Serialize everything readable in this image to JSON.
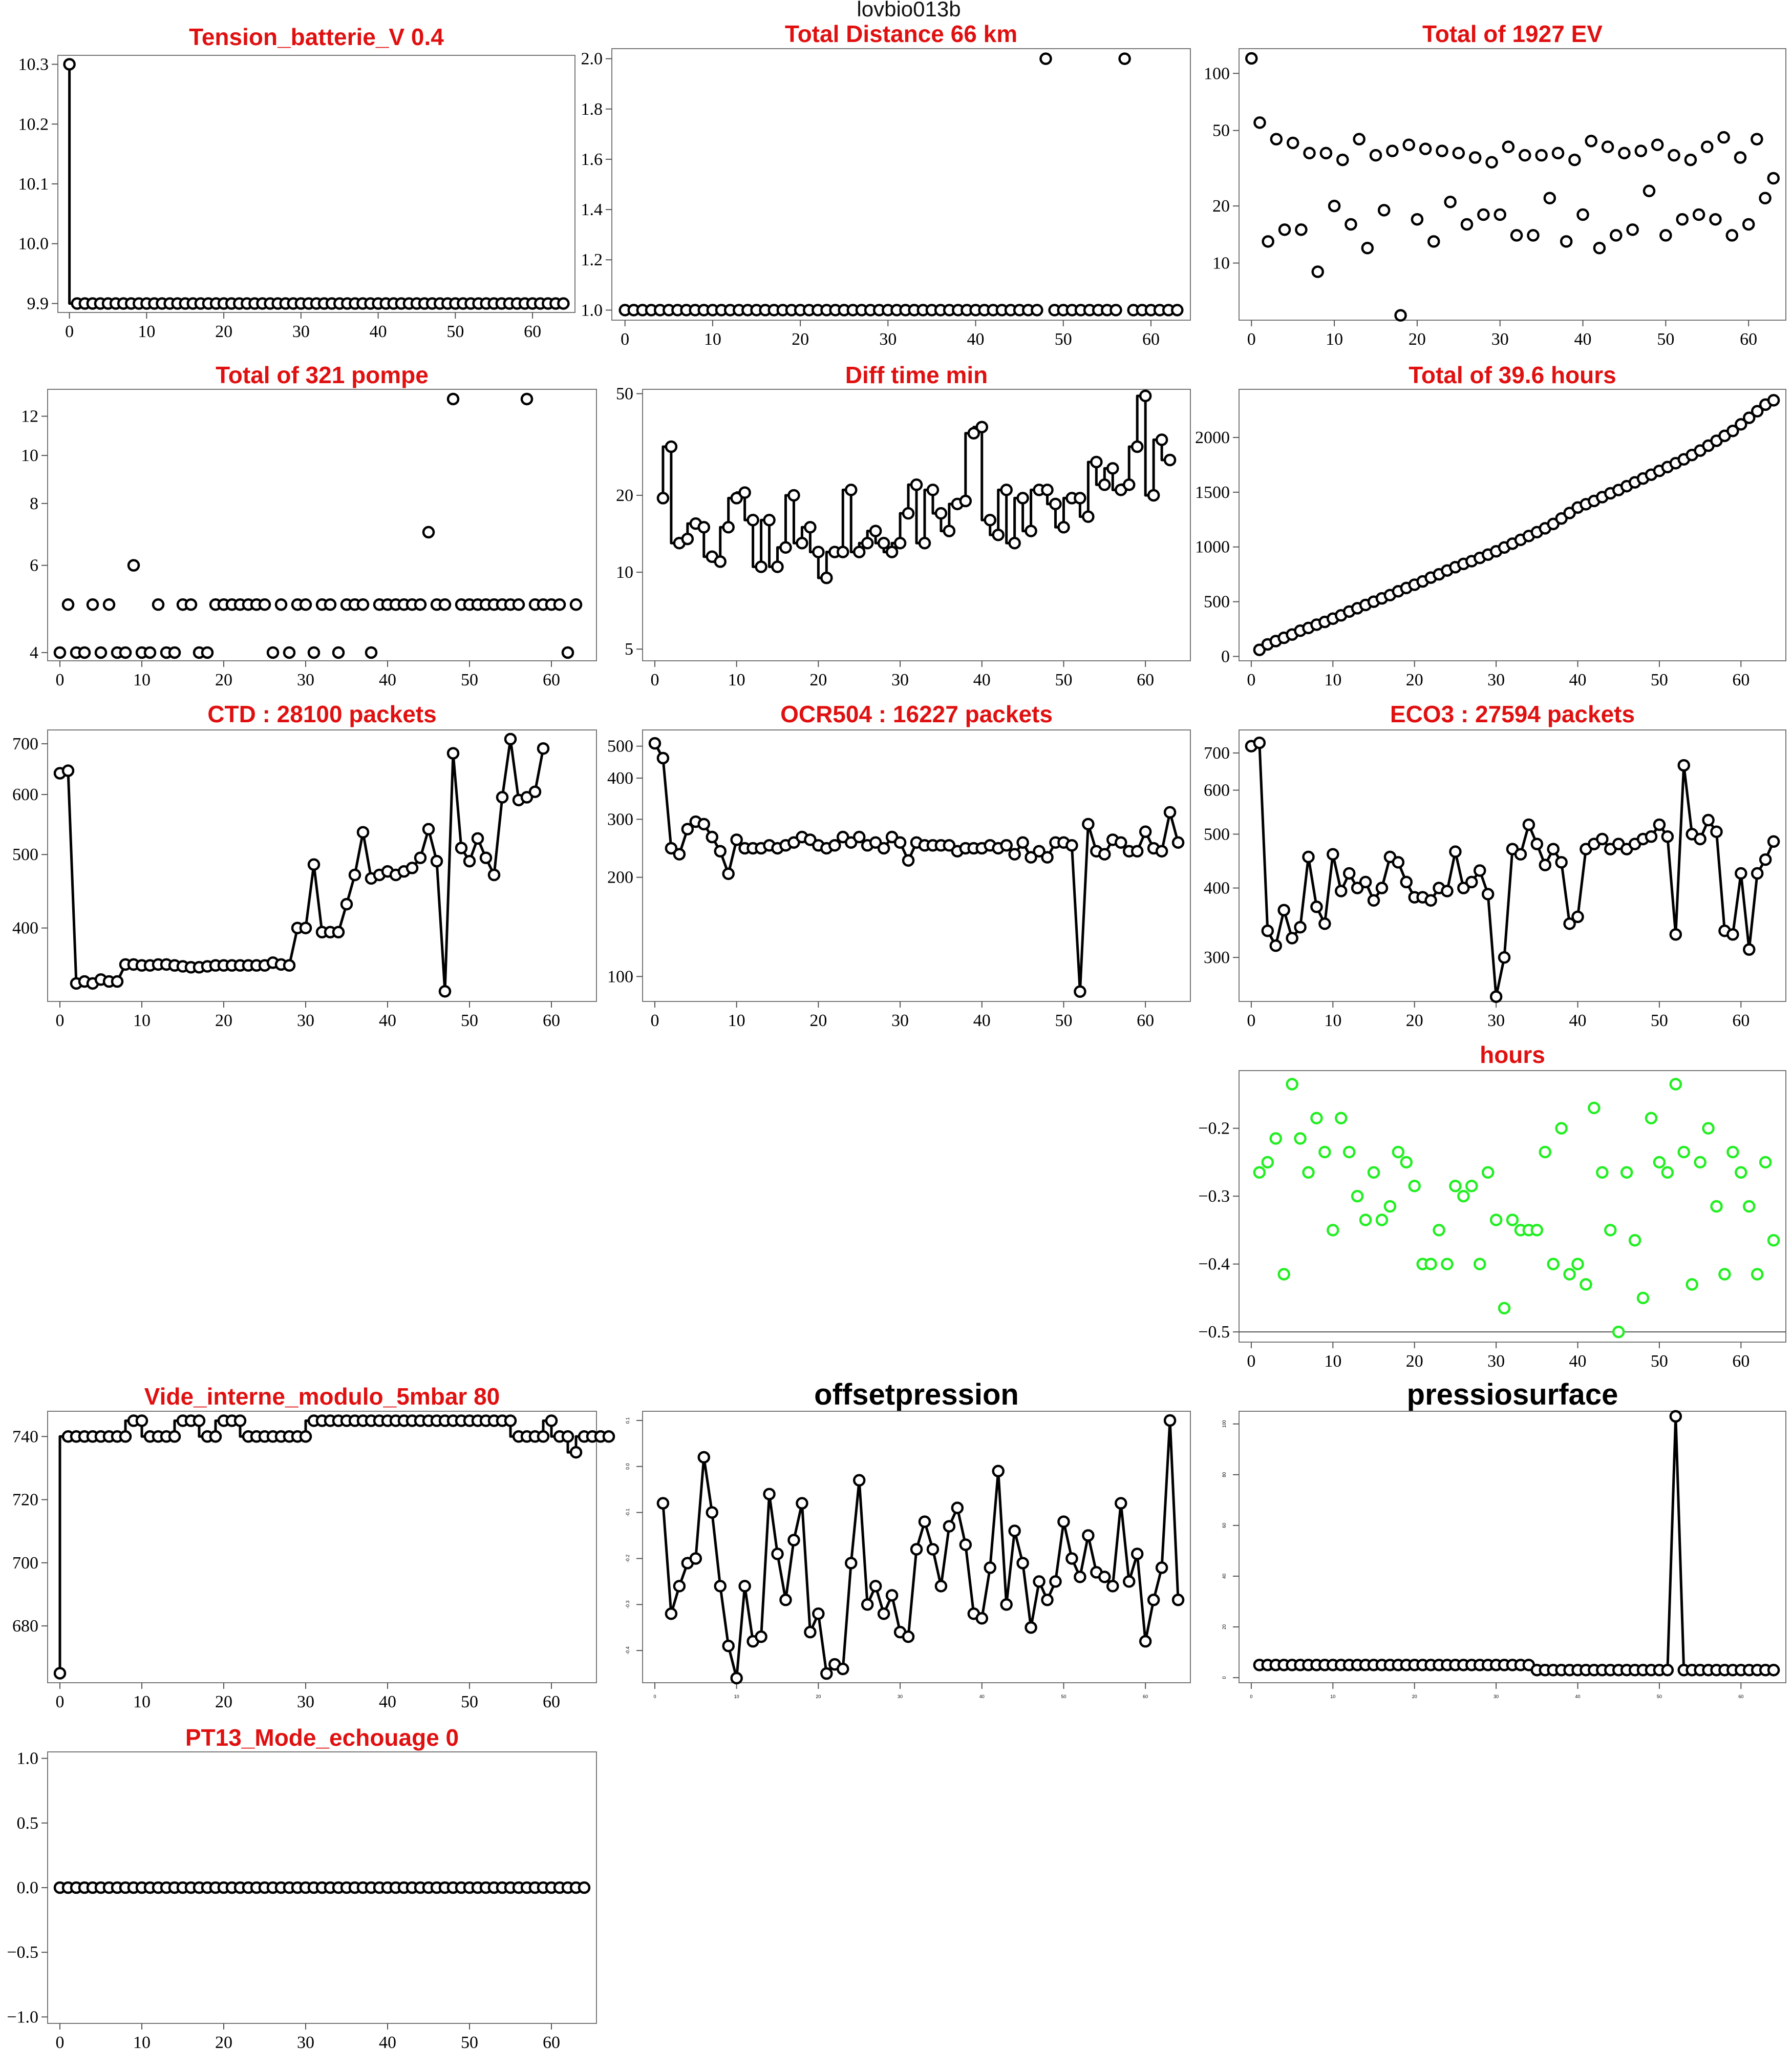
{
  "figure": {
    "title": "lovbio013b"
  },
  "chart_data": [
    {
      "id": "tension",
      "type": "line",
      "title": "Tension_batterie_V 0.4",
      "title_color": "#e01010",
      "style": "step",
      "x_start": 0,
      "ylim": [
        9.885,
        10.315
      ],
      "y_ticks": [
        9.9,
        10.0,
        10.1,
        10.2,
        10.3
      ],
      "y_tick_labels": [
        "9.9",
        "10.0",
        "10.1",
        "10.2",
        "10.3"
      ],
      "xlim": [
        -1.5,
        65.5
      ],
      "x_ticks": [
        0,
        10,
        20,
        30,
        40,
        50,
        60
      ],
      "values": [
        10.3,
        9.9,
        9.9,
        9.9,
        9.9,
        9.9,
        9.9,
        9.9,
        9.9,
        9.9,
        9.9,
        9.9,
        9.9,
        9.9,
        9.9,
        9.9,
        9.9,
        9.9,
        9.9,
        9.9,
        9.9,
        9.9,
        9.9,
        9.9,
        9.9,
        9.9,
        9.9,
        9.9,
        9.9,
        9.9,
        9.9,
        9.9,
        9.9,
        9.9,
        9.9,
        9.9,
        9.9,
        9.9,
        9.9,
        9.9,
        9.9,
        9.9,
        9.9,
        9.9,
        9.9,
        9.9,
        9.9,
        9.9,
        9.9,
        9.9,
        9.9,
        9.9,
        9.9,
        9.9,
        9.9,
        9.9,
        9.9,
        9.9,
        9.9,
        9.9,
        9.9,
        9.9,
        9.9,
        9.9,
        9.9
      ]
    },
    {
      "id": "distance",
      "type": "scatter",
      "title": "Total Distance  66  km",
      "title_color": "#e01010",
      "x_start": 0,
      "ylim": [
        0.96,
        2.04
      ],
      "y_ticks": [
        1.0,
        1.2,
        1.4,
        1.6,
        1.8,
        2.0
      ],
      "y_tick_labels": [
        "1.0",
        "1.2",
        "1.4",
        "1.6",
        "1.8",
        "2.0"
      ],
      "xlim": [
        -1.5,
        64.5
      ],
      "x_ticks": [
        0,
        10,
        20,
        30,
        40,
        50,
        60
      ],
      "values": [
        1,
        1,
        1,
        1,
        1,
        1,
        1,
        1,
        1,
        1,
        1,
        1,
        1,
        1,
        1,
        1,
        1,
        1,
        1,
        1,
        1,
        1,
        1,
        1,
        1,
        1,
        1,
        1,
        1,
        1,
        1,
        1,
        1,
        1,
        1,
        1,
        1,
        1,
        1,
        1,
        1,
        1,
        1,
        1,
        1,
        1,
        1,
        1,
        2,
        1,
        1,
        1,
        1,
        1,
        1,
        1,
        1,
        2,
        1,
        1,
        1,
        1,
        1,
        1
      ]
    },
    {
      "id": "ev",
      "type": "scatter",
      "title": "Total of  1927  EV",
      "title_color": "#e01010",
      "log_y": true,
      "x_start": 0,
      "ylim": [
        5,
        135
      ],
      "y_ticks": [
        10,
        20,
        50,
        100
      ],
      "y_tick_labels": [
        "10",
        "20",
        "50",
        "100"
      ],
      "xlim": [
        -1.5,
        64.5
      ],
      "x_ticks": [
        0,
        10,
        20,
        30,
        40,
        50,
        60
      ],
      "values": [
        120,
        55,
        13,
        45,
        15,
        43,
        15,
        38,
        9,
        38,
        20,
        35,
        16,
        45,
        12,
        37,
        19,
        39,
        5.3,
        42,
        17,
        40,
        13,
        39,
        21,
        38,
        16,
        36,
        18,
        34,
        18,
        41,
        14,
        37,
        14,
        37,
        22,
        38,
        13,
        35,
        18,
        44,
        12,
        41,
        14,
        38,
        15,
        39,
        24,
        42,
        14,
        37,
        17,
        35,
        18,
        41,
        17,
        46,
        14,
        36,
        16,
        45,
        22,
        28
      ]
    },
    {
      "id": "pompe",
      "type": "scatter",
      "title": "Total of  321  pompe",
      "title_color": "#e01010",
      "log_y": true,
      "x_start": 0,
      "ylim": [
        3.85,
        13.6
      ],
      "y_ticks": [
        4,
        6,
        8,
        10,
        12
      ],
      "y_tick_labels": [
        "4",
        "6",
        "8",
        "10",
        "12"
      ],
      "xlim": [
        -1.5,
        65.5
      ],
      "x_ticks": [
        0,
        10,
        20,
        30,
        40,
        50,
        60
      ],
      "values": [
        4,
        5,
        4,
        4,
        5,
        4,
        5,
        4,
        4,
        6,
        4,
        4,
        5,
        4,
        4,
        5,
        5,
        4,
        4,
        5,
        5,
        5,
        5,
        5,
        5,
        5,
        4,
        5,
        4,
        5,
        5,
        4,
        5,
        5,
        4,
        5,
        5,
        5,
        4,
        5,
        5,
        5,
        5,
        5,
        5,
        7,
        5,
        5,
        13,
        5,
        5,
        5,
        5,
        5,
        5,
        5,
        5,
        13,
        5,
        5,
        5,
        5,
        4,
        5
      ]
    },
    {
      "id": "difftime",
      "type": "line",
      "title": "Diff time min",
      "title_color": "#e01010",
      "style": "step",
      "log_y": true,
      "x_start": 1,
      "ylim": [
        4.5,
        52
      ],
      "y_ticks": [
        5,
        10,
        20,
        50
      ],
      "y_tick_labels": [
        "5",
        "10",
        "20",
        "50"
      ],
      "xlim": [
        -1.5,
        65.5
      ],
      "x_ticks": [
        0,
        10,
        20,
        30,
        40,
        50,
        60
      ],
      "values": [
        19.5,
        31,
        13,
        13.5,
        15.5,
        15,
        11.5,
        11,
        15,
        19.5,
        20.5,
        16,
        10.5,
        16,
        10.5,
        12.5,
        20,
        13,
        15,
        12,
        9.5,
        12,
        12,
        21,
        12,
        13,
        14.5,
        13,
        12,
        13,
        17,
        22,
        13,
        21,
        17,
        14.5,
        18.5,
        19,
        35,
        37,
        16,
        14,
        21,
        13,
        19.5,
        14.5,
        21,
        21,
        18.5,
        15,
        19.5,
        19.5,
        16.5,
        27,
        22,
        25.5,
        21,
        22,
        31,
        49,
        20,
        33,
        27.5
      ]
    },
    {
      "id": "hours_total",
      "type": "line",
      "title": "Total of  39.6  hours",
      "title_color": "#e01010",
      "x_start": 1,
      "ylim": [
        -40,
        2440
      ],
      "y_ticks": [
        0,
        500,
        1000,
        1500,
        2000
      ],
      "y_tick_labels": [
        "0",
        "500",
        "1000",
        "1500",
        "2000"
      ],
      "xlim": [
        -1.5,
        65.5
      ],
      "x_ticks": [
        0,
        10,
        20,
        30,
        40,
        50,
        60
      ],
      "values": [
        60,
        110,
        140,
        170,
        200,
        235,
        260,
        290,
        315,
        345,
        375,
        410,
        440,
        470,
        500,
        530,
        560,
        595,
        625,
        655,
        685,
        720,
        750,
        785,
        815,
        845,
        870,
        900,
        930,
        960,
        995,
        1030,
        1065,
        1100,
        1135,
        1170,
        1210,
        1260,
        1310,
        1360,
        1390,
        1420,
        1455,
        1490,
        1520,
        1555,
        1590,
        1625,
        1660,
        1695,
        1730,
        1765,
        1800,
        1840,
        1880,
        1925,
        1970,
        2015,
        2060,
        2120,
        2180,
        2240,
        2300,
        2340
      ]
    },
    {
      "id": "ctd",
      "type": "line",
      "title": "CTD  : 28100  packets",
      "title_color": "#e01010",
      "log_y": true,
      "x_start": 0,
      "ylim": [
        320,
        730
      ],
      "y_ticks": [
        400,
        500,
        600,
        700
      ],
      "y_tick_labels": [
        "400",
        "500",
        "600",
        "700"
      ],
      "xlim": [
        -1.5,
        65.5
      ],
      "x_ticks": [
        0,
        10,
        20,
        30,
        40,
        50,
        60
      ],
      "values": [
        640,
        645,
        338,
        340,
        338,
        342,
        340,
        340,
        358,
        358,
        357,
        357,
        358,
        358,
        357,
        356,
        355,
        355,
        356,
        357,
        357,
        357,
        357,
        357,
        357,
        357,
        360,
        358,
        357,
        400,
        400,
        485,
        395,
        395,
        395,
        430,
        470,
        535,
        465,
        470,
        475,
        470,
        475,
        480,
        495,
        540,
        490,
        330,
        680,
        510,
        490,
        525,
        495,
        470,
        595,
        710,
        590,
        595,
        605,
        690
      ]
    },
    {
      "id": "ocr",
      "type": "line",
      "title": "OCR504  : 16227  packets",
      "title_color": "#e01010",
      "log_y": true,
      "x_start": 0,
      "ylim": [
        84,
        560
      ],
      "y_ticks": [
        100,
        200,
        300,
        400,
        500
      ],
      "y_tick_labels": [
        "100",
        "200",
        "300",
        "400",
        "500"
      ],
      "xlim": [
        -1.5,
        65.5
      ],
      "x_ticks": [
        0,
        10,
        20,
        30,
        40,
        50,
        60
      ],
      "values": [
        510,
        460,
        245,
        235,
        280,
        295,
        290,
        265,
        240,
        205,
        260,
        245,
        245,
        245,
        250,
        245,
        250,
        255,
        265,
        260,
        250,
        245,
        250,
        265,
        255,
        265,
        250,
        255,
        245,
        265,
        255,
        225,
        255,
        250,
        250,
        250,
        250,
        240,
        245,
        245,
        245,
        250,
        245,
        250,
        235,
        255,
        230,
        240,
        230,
        255,
        255,
        250,
        90,
        290,
        240,
        235,
        260,
        255,
        240,
        240,
        275,
        245,
        240,
        315,
        255
      ]
    },
    {
      "id": "eco",
      "type": "line",
      "title": "ECO3  : 27594  packets",
      "title_color": "#e01010",
      "log_y": true,
      "x_start": 0,
      "ylim": [
        250,
        770
      ],
      "y_ticks": [
        300,
        400,
        500,
        600,
        700
      ],
      "y_tick_labels": [
        "300",
        "400",
        "500",
        "600",
        "700"
      ],
      "xlim": [
        -1.5,
        65.5
      ],
      "x_ticks": [
        0,
        10,
        20,
        30,
        40,
        50,
        60
      ],
      "values": [
        720,
        730,
        335,
        315,
        365,
        325,
        340,
        455,
        370,
        345,
        460,
        395,
        425,
        400,
        410,
        380,
        400,
        455,
        445,
        410,
        385,
        385,
        380,
        400,
        395,
        465,
        400,
        410,
        430,
        390,
        255,
        300,
        470,
        460,
        520,
        480,
        440,
        470,
        445,
        345,
        355,
        470,
        480,
        490,
        470,
        480,
        470,
        480,
        490,
        495,
        520,
        495,
        330,
        665,
        500,
        490,
        530,
        505,
        335,
        330,
        425,
        310,
        425,
        450,
        485
      ]
    },
    {
      "id": "hours",
      "type": "scatter",
      "title": "hours",
      "title_color": "#e01010",
      "point_color": "#22ee22",
      "hline": -0.5,
      "x_start": 0,
      "ylim": [
        -0.515,
        -0.115
      ],
      "y_ticks": [
        -0.5,
        -0.4,
        -0.3,
        -0.2
      ],
      "y_tick_labels": [
        "−0.5",
        "−0.4",
        "−0.3",
        "−0.2"
      ],
      "xlim": [
        -1.5,
        65.5
      ],
      "x_ticks": [
        0,
        10,
        20,
        30,
        40,
        50,
        60
      ],
      "values": [
        null,
        -0.265,
        -0.25,
        -0.215,
        -0.415,
        -0.135,
        -0.215,
        -0.265,
        -0.185,
        -0.235,
        -0.35,
        -0.185,
        -0.235,
        -0.3,
        -0.335,
        -0.265,
        -0.335,
        -0.315,
        -0.235,
        -0.25,
        -0.285,
        -0.4,
        -0.4,
        -0.35,
        -0.4,
        -0.285,
        -0.3,
        -0.285,
        -0.4,
        -0.265,
        -0.335,
        -0.465,
        -0.335,
        -0.35,
        -0.35,
        -0.35,
        -0.235,
        -0.4,
        -0.2,
        -0.415,
        -0.4,
        -0.43,
        -0.17,
        -0.265,
        -0.35,
        -0.5,
        -0.265,
        -0.365,
        -0.45,
        -0.185,
        -0.25,
        -0.265,
        -0.135,
        -0.235,
        -0.43,
        -0.25,
        -0.2,
        -0.315,
        -0.415,
        -0.235,
        -0.265,
        -0.315,
        -0.415,
        -0.25,
        -0.365
      ]
    },
    {
      "id": "vide",
      "type": "line",
      "title": "Vide_interne_modulo_5mbar 80",
      "title_color": "#e01010",
      "style": "step",
      "x_start": 0,
      "ylim": [
        662,
        748
      ],
      "y_ticks": [
        680,
        700,
        720,
        740
      ],
      "y_tick_labels": [
        "680",
        "700",
        "720",
        "740"
      ],
      "xlim": [
        -1.5,
        65.5
      ],
      "x_ticks": [
        0,
        10,
        20,
        30,
        40,
        50,
        60
      ],
      "values": [
        665,
        740,
        740,
        740,
        740,
        740,
        740,
        740,
        740,
        745,
        745,
        740,
        740,
        740,
        740,
        745,
        745,
        745,
        740,
        740,
        745,
        745,
        745,
        740,
        740,
        740,
        740,
        740,
        740,
        740,
        740,
        745,
        745,
        745,
        745,
        745,
        745,
        745,
        745,
        745,
        745,
        745,
        745,
        745,
        745,
        745,
        745,
        745,
        745,
        745,
        745,
        745,
        745,
        745,
        745,
        745,
        740,
        740,
        740,
        740,
        745,
        740,
        740,
        735,
        740,
        740,
        740,
        740
      ]
    },
    {
      "id": "offset",
      "type": "line",
      "title": "offsetpression",
      "title_color": "#000000",
      "x_start": 1,
      "ylim": [
        -0.47,
        0.12
      ],
      "y_ticks": [
        -0.4,
        -0.3,
        -0.2,
        -0.1,
        0.0,
        0.1
      ],
      "y_tick_labels": [
        "-0.4",
        "-0.3",
        "-0.2",
        "-0.1",
        "0.0",
        "0.1"
      ],
      "xlim": [
        -1.5,
        65.5
      ],
      "x_ticks": [
        0,
        10,
        20,
        30,
        40,
        50,
        60
      ],
      "values": [
        -0.08,
        -0.32,
        -0.26,
        -0.21,
        -0.2,
        0.02,
        -0.1,
        -0.26,
        -0.39,
        -0.46,
        -0.26,
        -0.38,
        -0.37,
        -0.06,
        -0.19,
        -0.29,
        -0.16,
        -0.08,
        -0.36,
        -0.32,
        -0.45,
        -0.43,
        -0.44,
        -0.21,
        -0.03,
        -0.3,
        -0.26,
        -0.32,
        -0.28,
        -0.36,
        -0.37,
        -0.18,
        -0.12,
        -0.18,
        -0.26,
        -0.13,
        -0.09,
        -0.17,
        -0.32,
        -0.33,
        -0.22,
        -0.01,
        -0.3,
        -0.14,
        -0.21,
        -0.35,
        -0.25,
        -0.29,
        -0.25,
        -0.12,
        -0.2,
        -0.24,
        -0.15,
        -0.23,
        -0.24,
        -0.26,
        -0.08,
        -0.25,
        -0.19,
        -0.38,
        -0.29,
        -0.22,
        0.1,
        -0.29
      ]
    },
    {
      "id": "pressio",
      "type": "line",
      "title": "pressiosurface",
      "title_color": "#000000",
      "x_start": 1,
      "ylim": [
        -2,
        105
      ],
      "y_ticks": [
        0,
        20,
        40,
        60,
        80,
        100
      ],
      "y_tick_labels": [
        "0",
        "20",
        "40",
        "60",
        "80",
        "100"
      ],
      "xlim": [
        -1.5,
        65.5
      ],
      "x_ticks": [
        0,
        10,
        20,
        30,
        40,
        50,
        60
      ],
      "values": [
        5,
        5,
        5,
        5,
        5,
        5,
        5,
        5,
        5,
        5,
        5,
        5,
        5,
        5,
        5,
        5,
        5,
        5,
        5,
        5,
        5,
        5,
        5,
        5,
        5,
        5,
        5,
        5,
        5,
        5,
        5,
        5,
        5,
        5,
        3,
        3,
        3,
        3,
        3,
        3,
        3,
        3,
        3,
        3,
        3,
        3,
        3,
        3,
        3,
        3,
        3,
        103,
        3,
        3,
        3,
        3,
        3,
        3,
        3,
        3,
        3,
        3,
        3,
        3
      ]
    },
    {
      "id": "pt13",
      "type": "scatter",
      "title": "PT13_Mode_echouage  0",
      "title_color": "#e01010",
      "x_start": 0,
      "ylim": [
        -1.05,
        1.05
      ],
      "y_ticks": [
        -1.0,
        -0.5,
        0.0,
        0.5,
        1.0
      ],
      "y_tick_labels": [
        "−1.0",
        "−0.5",
        "0.0",
        "0.5",
        "1.0"
      ],
      "xlim": [
        -1.5,
        65.5
      ],
      "x_ticks": [
        0,
        10,
        20,
        30,
        40,
        50,
        60
      ],
      "values": [
        0,
        0,
        0,
        0,
        0,
        0,
        0,
        0,
        0,
        0,
        0,
        0,
        0,
        0,
        0,
        0,
        0,
        0,
        0,
        0,
        0,
        0,
        0,
        0,
        0,
        0,
        0,
        0,
        0,
        0,
        0,
        0,
        0,
        0,
        0,
        0,
        0,
        0,
        0,
        0,
        0,
        0,
        0,
        0,
        0,
        0,
        0,
        0,
        0,
        0,
        0,
        0,
        0,
        0,
        0,
        0,
        0,
        0,
        0,
        0,
        0,
        0,
        0,
        0,
        0
      ]
    }
  ]
}
